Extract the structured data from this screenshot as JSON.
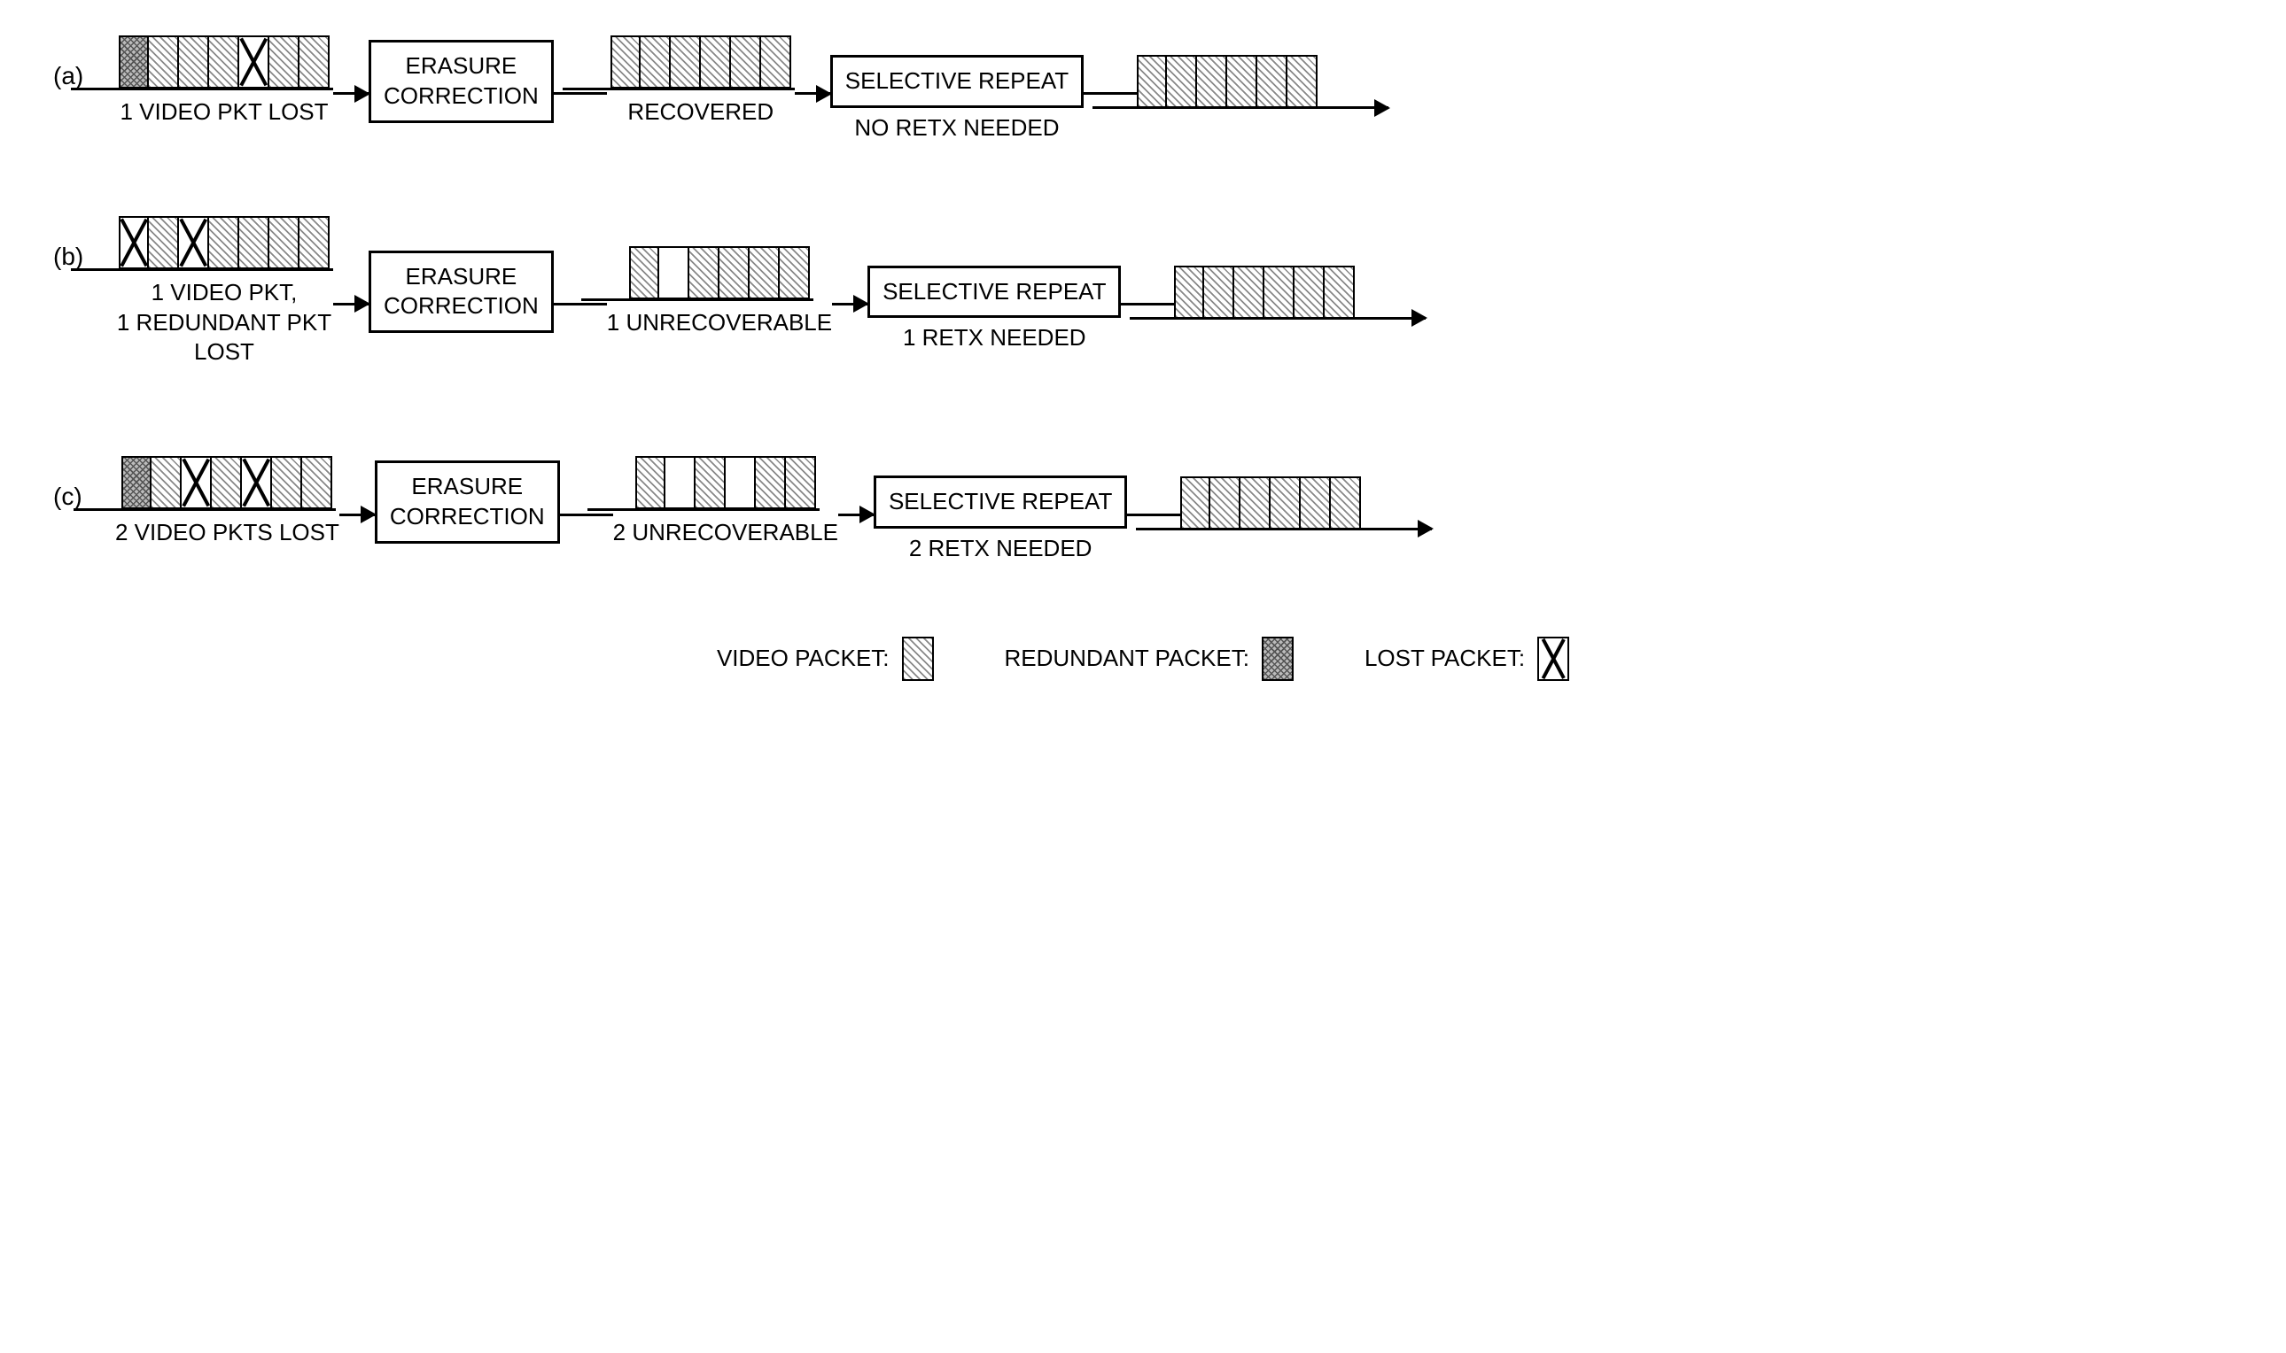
{
  "colors": {
    "stroke": "#000000",
    "background": "#ffffff",
    "video_hatch_light": "#888888",
    "video_hatch_bg": "#ffffff",
    "redundant_cross_dark": "#555555",
    "redundant_bg": "#bbbbbb"
  },
  "typography": {
    "font_family": "Arial, Helvetica, sans-serif",
    "label_fontsize": 28,
    "caption_fontsize": 26,
    "box_fontsize": 26,
    "legend_fontsize": 26
  },
  "packet_types": [
    "video",
    "redundant",
    "lost",
    "empty"
  ],
  "packet_size": {
    "width": 34,
    "height": 60,
    "border_width": 2.5
  },
  "rows": [
    {
      "id": "a",
      "label": "(a)",
      "stage1_packets": [
        "redundant",
        "video",
        "video",
        "video",
        "lost",
        "video",
        "video"
      ],
      "stage1_caption": "1 VIDEO PKT LOST",
      "box1_lines": [
        "ERASURE",
        "CORRECTION"
      ],
      "stage2_packets": [
        "video",
        "video",
        "video",
        "video",
        "video",
        "video"
      ],
      "stage2_caption": "RECOVERED",
      "box2_text": "SELECTIVE REPEAT",
      "box2_caption": "NO RETX NEEDED",
      "stage3_packets": [
        "video",
        "video",
        "video",
        "video",
        "video",
        "video"
      ]
    },
    {
      "id": "b",
      "label": "(b)",
      "stage1_packets": [
        "lost",
        "video",
        "lost",
        "video",
        "video",
        "video",
        "video"
      ],
      "stage1_caption": "1 VIDEO PKT,\n1 REDUNDANT PKT\nLOST",
      "box1_lines": [
        "ERASURE",
        "CORRECTION"
      ],
      "stage2_packets": [
        "video",
        "empty",
        "video",
        "video",
        "video",
        "video"
      ],
      "stage2_caption": "1 UNRECOVERABLE",
      "box2_text": "SELECTIVE REPEAT",
      "box2_caption": "1 RETX NEEDED",
      "stage3_packets": [
        "video",
        "video",
        "video",
        "video",
        "video",
        "video"
      ]
    },
    {
      "id": "c",
      "label": "(c)",
      "stage1_packets": [
        "redundant",
        "video",
        "lost",
        "video",
        "lost",
        "video",
        "video"
      ],
      "stage1_caption": "2 VIDEO PKTS LOST",
      "box1_lines": [
        "ERASURE",
        "CORRECTION"
      ],
      "stage2_packets": [
        "video",
        "empty",
        "video",
        "empty",
        "video",
        "video"
      ],
      "stage2_caption": "2 UNRECOVERABLE",
      "box2_text": "SELECTIVE REPEAT",
      "box2_caption": "2 RETX NEEDED",
      "stage3_packets": [
        "video",
        "video",
        "video",
        "video",
        "video",
        "video"
      ]
    }
  ],
  "legend": {
    "video_label": "VIDEO PACKET:",
    "redundant_label": "REDUNDANT PACKET:",
    "lost_label": "LOST PACKET:"
  },
  "layout": {
    "row_gap": 100,
    "arrow_into_box_width": 40,
    "arrow_between_width": 60,
    "arrow_final_tail": 80,
    "line_thickness": 3
  }
}
